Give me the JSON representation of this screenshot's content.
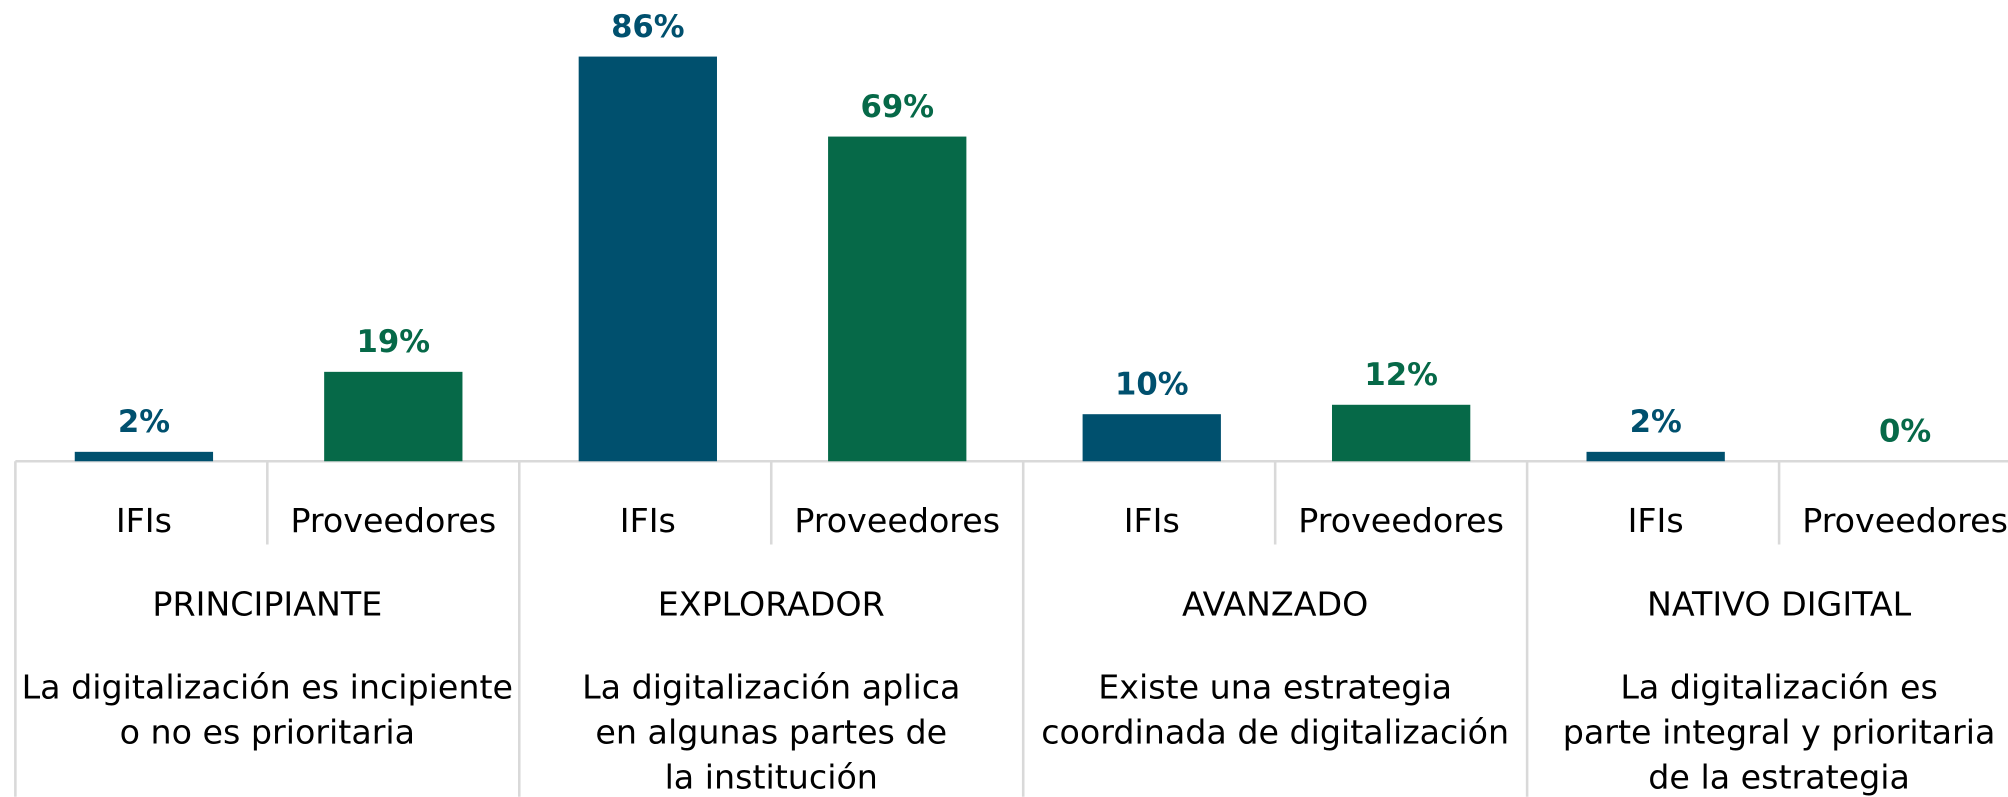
{
  "chart_data": {
    "type": "bar",
    "groups": [
      "PRINCIPIANTE",
      "EXPLORADOR",
      "AVANZADO",
      "NATIVO DIGITAL"
    ],
    "descriptions": [
      [
        "La digitalización es incipiente",
        "o no es prioritaria"
      ],
      [
        "La digitalización aplica",
        "en algunas partes de",
        "la institución"
      ],
      [
        "Existe una estrategia",
        "coordinada de digitalización"
      ],
      [
        "La digitalización es",
        "parte integral y prioritaria",
        "de la estrategia"
      ]
    ],
    "series": [
      {
        "name": "IFIs",
        "color": "#00506e",
        "values": [
          2,
          86,
          10,
          2
        ],
        "value_labels": [
          "2%",
          "86%",
          "10%",
          "2%"
        ]
      },
      {
        "name": "Proveedores",
        "color": "#066948",
        "values": [
          19,
          69,
          12,
          0
        ],
        "value_labels": [
          "19%",
          "69%",
          "12%",
          "0%"
        ]
      }
    ]
  }
}
